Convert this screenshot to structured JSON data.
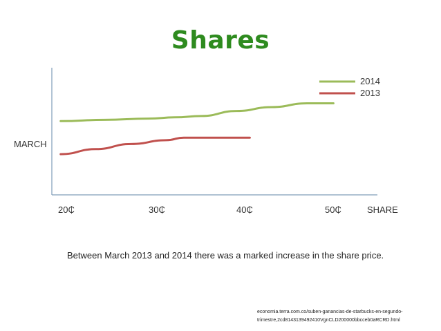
{
  "slide": {
    "title": "Shares",
    "title_color": "#2e8b1f",
    "caption": "Between March 2013 and 2014 there was a marked increase in the share price.",
    "source": "economia.terra.com.co/suben-ganancias-de-starbucks-en-segundo-trimestre,2cd8143139492410VgnCLD200000bbcceb0aRCRD.html"
  },
  "chart_data": {
    "type": "line",
    "title": "",
    "xlabel": "SHARE",
    "ylabel": "MARCH",
    "x_ticks": [
      "20₵",
      "30₵",
      "40₵",
      "50₵"
    ],
    "x_tick_values": [
      20,
      30,
      40,
      50
    ],
    "xlim": [
      19,
      56
    ],
    "ylim": [
      0,
      1
    ],
    "grid": false,
    "legend_position": "top-right",
    "series": [
      {
        "name": "2014",
        "color": "#9bbb59",
        "x": [
          20,
          25,
          30,
          33,
          36,
          40,
          44,
          48,
          51
        ],
        "y": [
          0.58,
          0.59,
          0.6,
          0.61,
          0.62,
          0.66,
          0.69,
          0.72,
          0.72
        ]
      },
      {
        "name": "2013",
        "color": "#c0504d",
        "x": [
          20,
          24,
          28,
          32,
          34,
          36,
          38,
          41.5
        ],
        "y": [
          0.32,
          0.36,
          0.4,
          0.43,
          0.45,
          0.45,
          0.45,
          0.45
        ]
      }
    ]
  }
}
